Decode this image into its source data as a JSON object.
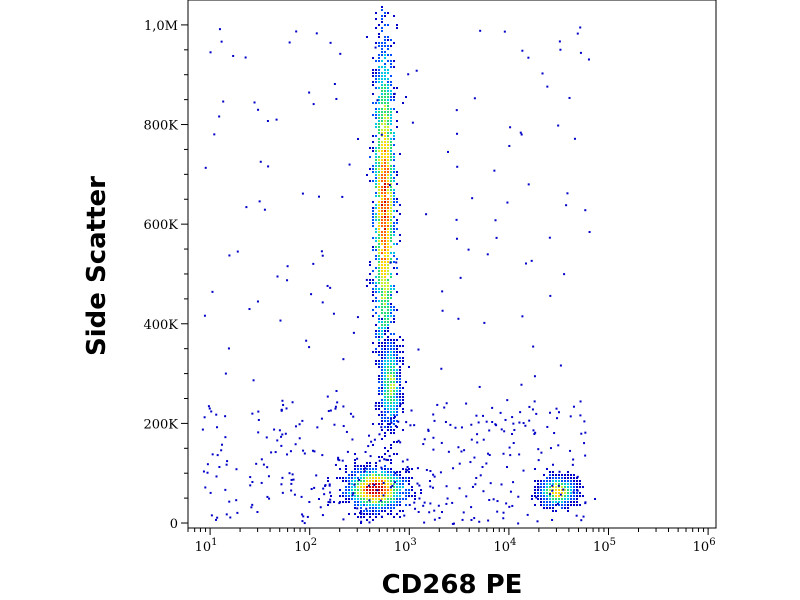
{
  "chart_data": {
    "type": "scatter",
    "subtype": "flow-cytometry-density-dot-plot",
    "xlabel": "CD268 PE",
    "ylabel": "Side Scatter",
    "x_scale": "log",
    "xlim": [
      6,
      1200000
    ],
    "ylim": [
      -10000,
      1050000
    ],
    "x_ticks": [
      {
        "value": 10,
        "base": "10",
        "exp": "1"
      },
      {
        "value": 100,
        "base": "10",
        "exp": "2"
      },
      {
        "value": 1000,
        "base": "10",
        "exp": "3"
      },
      {
        "value": 10000,
        "base": "10",
        "exp": "4"
      },
      {
        "value": 100000,
        "base": "10",
        "exp": "5"
      },
      {
        "value": 1000000,
        "base": "10",
        "exp": "6"
      }
    ],
    "y_ticks": [
      {
        "value": 0,
        "label": "0"
      },
      {
        "value": 200000,
        "label": "200K"
      },
      {
        "value": 400000,
        "label": "400K"
      },
      {
        "value": 600000,
        "label": "600K"
      },
      {
        "value": 800000,
        "label": "800K"
      },
      {
        "value": 1000000,
        "label": "1,0M"
      }
    ],
    "grid": false,
    "legend": "none",
    "color_scale": [
      "#0000c8",
      "#0050ff",
      "#00c8e6",
      "#28dc78",
      "#c8f032",
      "#ffd700",
      "#ff6400",
      "#d20000"
    ],
    "populations": [
      {
        "id": "lymphocytes-cd268-negative",
        "x_center": 450,
        "y_center": 70000,
        "x_spread_decades": 0.14,
        "y_spread": 20000,
        "peak_density": 1.0
      },
      {
        "id": "granulocytes",
        "x_center": 550,
        "y_center": 640000,
        "x_spread_decades": 0.055,
        "y_spread": 170000,
        "peak_density": 0.85
      },
      {
        "id": "monocytes",
        "x_center": 630,
        "y_center": 280000,
        "x_spread_decades": 0.05,
        "y_spread": 45000,
        "peak_density": 0.5
      },
      {
        "id": "cd268-positive-cells",
        "x_center": 30000,
        "y_center": 65000,
        "x_spread_decades": 0.09,
        "y_spread": 14000,
        "peak_density": 0.7
      }
    ]
  }
}
